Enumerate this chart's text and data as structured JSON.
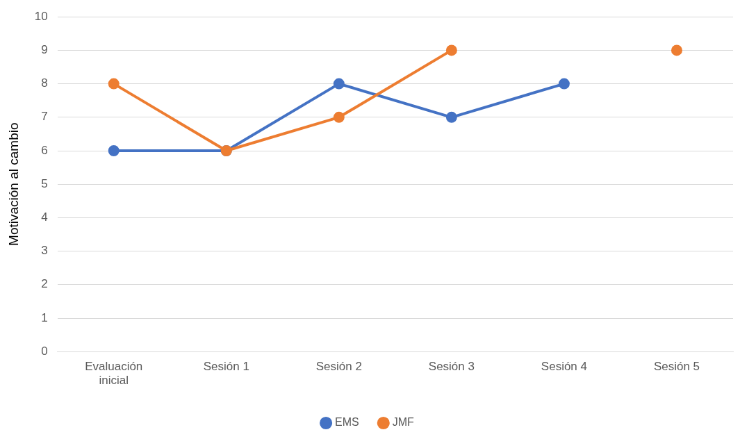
{
  "chart_data": {
    "type": "line",
    "ylabel": "Motivación al cambio",
    "categories": [
      "Evaluación inicial",
      "Sesión 1",
      "Sesión 2",
      "Sesión 3",
      "Sesión 4",
      "Sesión 5"
    ],
    "series": [
      {
        "name": "EMS",
        "color": "#4472c4",
        "values": [
          6,
          6,
          8,
          7,
          8,
          null
        ]
      },
      {
        "name": "JMF",
        "color": "#ed7d31",
        "values": [
          8,
          6,
          7,
          9,
          null,
          9
        ]
      }
    ],
    "ylim": [
      0,
      10
    ],
    "yticks": [
      0,
      1,
      2,
      3,
      4,
      5,
      6,
      7,
      8,
      9,
      10
    ],
    "grid": "y",
    "legend": "bottom",
    "marker": "circle",
    "line_style": "solid"
  }
}
